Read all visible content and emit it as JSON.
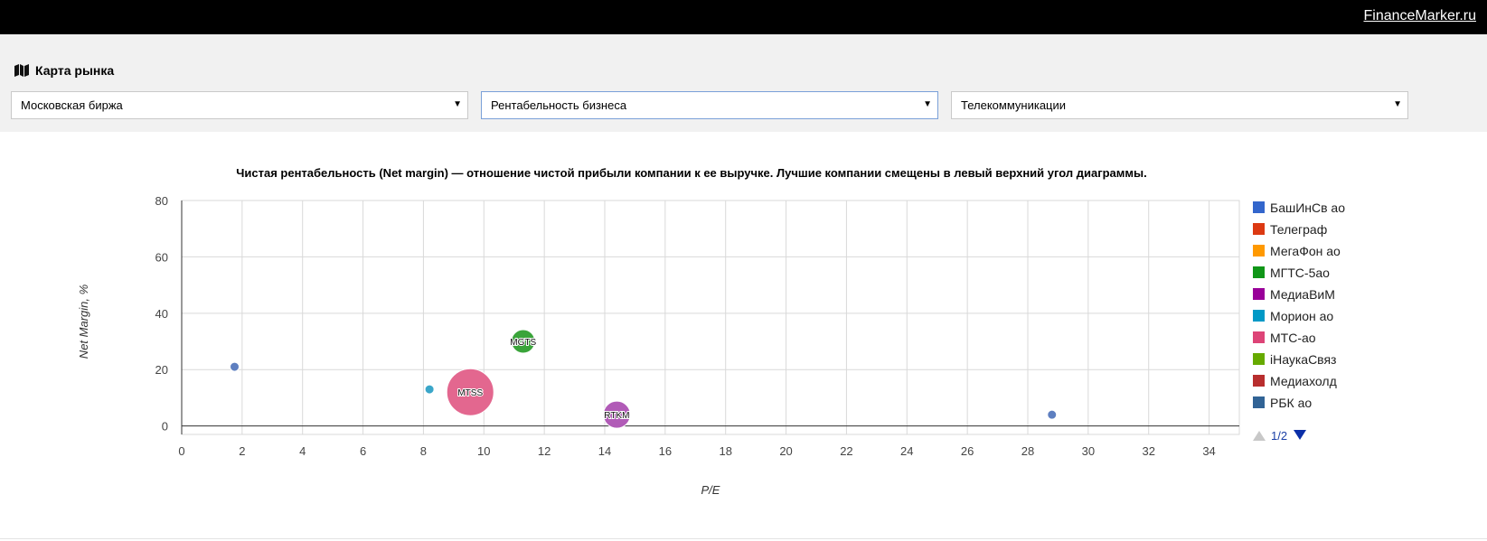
{
  "header": {
    "brand": "FinanceMarker.ru"
  },
  "panel": {
    "title": "Карта рынка",
    "selects": [
      {
        "value": "Московская биржа"
      },
      {
        "value": "Рентабельность бизнеса"
      },
      {
        "value": "Телекоммуникации"
      }
    ]
  },
  "colors": {
    "topbar": "#000000",
    "panel": "#f1f1f1",
    "grid": "#d9d9d9"
  },
  "chart_data": {
    "type": "scatter",
    "subtype": "bubble",
    "title": "Чистая рентабельность (Net margin) — отношение чистой прибыли компании к ее выручке. Лучшие компании смещены в левый верхний угол диаграммы.",
    "xlabel": "P/E",
    "ylabel": "Net Margin, %",
    "xlim": [
      0,
      35
    ],
    "ylim": [
      -3,
      80
    ],
    "xticks": [
      0,
      2,
      4,
      6,
      8,
      10,
      12,
      14,
      16,
      18,
      20,
      22,
      24,
      26,
      28,
      30,
      32,
      34
    ],
    "yticks": [
      0,
      20,
      40,
      60,
      80
    ],
    "grid": true,
    "legend_position": "right",
    "legend": [
      {
        "name": "БашИнСв ао",
        "color": "#3366cc"
      },
      {
        "name": "Телеграф",
        "color": "#dc3912"
      },
      {
        "name": "МегаФон ао",
        "color": "#ff9900"
      },
      {
        "name": "МГТС-5ао",
        "color": "#109618"
      },
      {
        "name": "МедиаВиМ",
        "color": "#990099"
      },
      {
        "name": "Морион ао",
        "color": "#0099c6"
      },
      {
        "name": "МТС-ао",
        "color": "#dd4477"
      },
      {
        "name": "іНаукаСвяз",
        "color": "#66aa00"
      },
      {
        "name": "Медиахолд",
        "color": "#b82e2e"
      },
      {
        "name": "РБК ао",
        "color": "#316395"
      }
    ],
    "legend_pager": "1/2",
    "points": [
      {
        "x": 1.75,
        "y": 21,
        "size": 5,
        "label": "",
        "color": "#5e7fc0"
      },
      {
        "x": 8.2,
        "y": 13,
        "size": 5,
        "label": "",
        "color": "#3aa6c9"
      },
      {
        "x": 9.55,
        "y": 12,
        "size": 26,
        "label": "MTSS",
        "color": "#e3678f"
      },
      {
        "x": 11.3,
        "y": 30,
        "size": 13,
        "label": "MGTS",
        "color": "#3aa43a"
      },
      {
        "x": 14.4,
        "y": 4,
        "size": 15,
        "label": "RTKM",
        "color": "#b15bb7"
      },
      {
        "x": 28.8,
        "y": 4,
        "size": 5,
        "label": "",
        "color": "#5e7fc0"
      }
    ]
  }
}
